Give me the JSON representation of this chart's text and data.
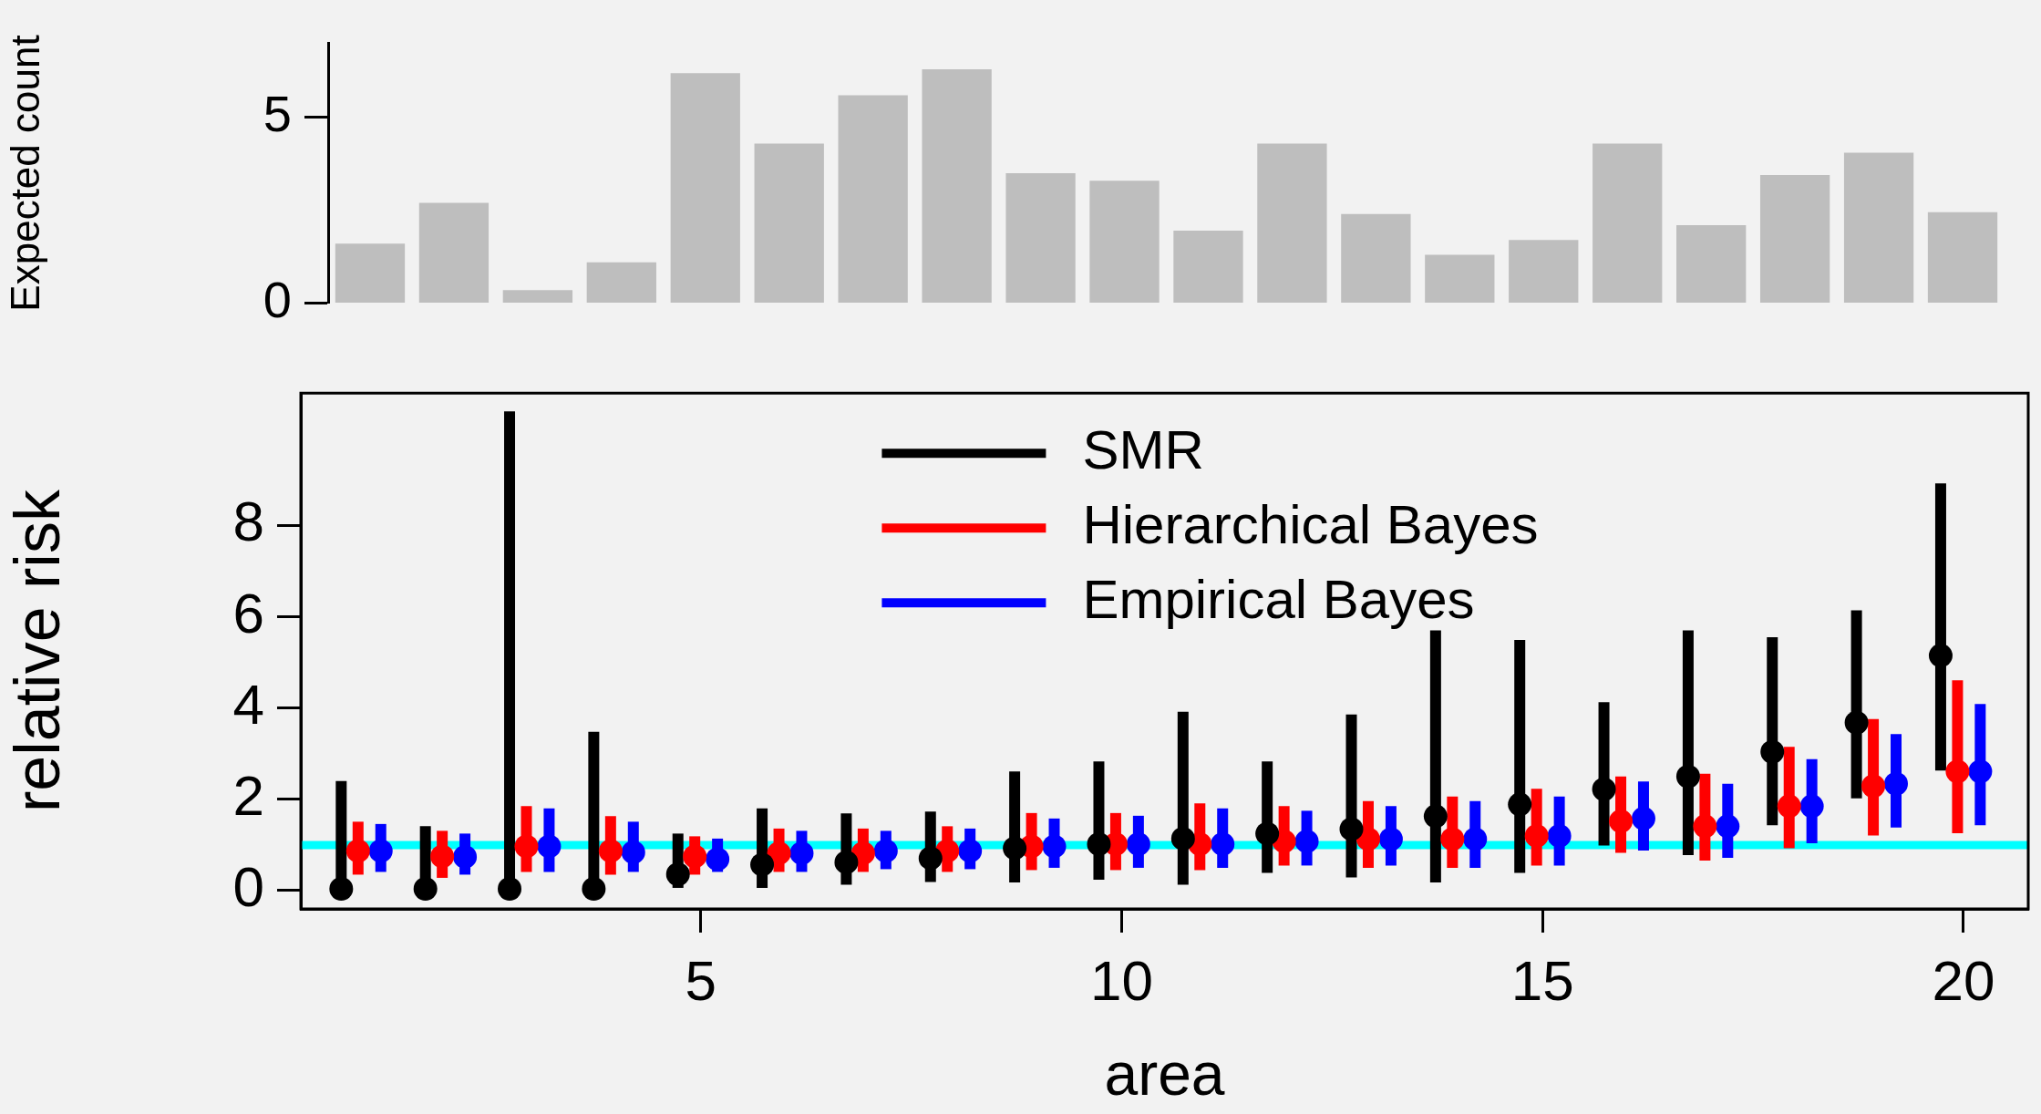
{
  "chart_data": [
    {
      "type": "bar",
      "ylabel": "Expected count",
      "categories": [
        null,
        null,
        null,
        null,
        null,
        null,
        null,
        null,
        null,
        null,
        null,
        null,
        null,
        null,
        null,
        null,
        null,
        null,
        null,
        null
      ],
      "values": [
        1.6,
        2.7,
        0.35,
        1.1,
        6.2,
        4.3,
        5.6,
        6.3,
        3.5,
        3.3,
        1.95,
        4.3,
        2.4,
        1.3,
        1.7,
        4.3,
        2.1,
        3.45,
        4.05,
        2.45
      ],
      "color": "#bebebe",
      "ylim": [
        0,
        7
      ],
      "yticks": [
        0,
        5
      ]
    },
    {
      "type": "scatter",
      "xlabel": "area",
      "ylabel": "relative risk",
      "xlim": [
        0.25,
        20.77
      ],
      "xticks": [
        5,
        10,
        15,
        20
      ],
      "ylim": [
        -0.4,
        10.9
      ],
      "yticks": [
        0,
        2,
        4,
        6,
        8
      ],
      "legend": "top",
      "marker": "circle",
      "ref_lines": [
        {
          "axis": "y",
          "value": 1,
          "color": "#00ffff"
        }
      ],
      "series": [
        {
          "name": "SMR",
          "color": "#000000",
          "x": [
            0.73,
            1.73,
            2.73,
            3.73,
            4.73,
            5.73,
            6.73,
            7.73,
            8.73,
            9.73,
            10.73,
            11.73,
            12.73,
            13.73,
            14.73,
            15.73,
            16.73,
            17.73,
            18.73,
            19.73
          ],
          "values": [
            0.04,
            0.04,
            0.04,
            0.04,
            0.36,
            0.57,
            0.62,
            0.71,
            0.93,
            1.02,
            1.14,
            1.25,
            1.35,
            1.63,
            1.89,
            2.22,
            2.5,
            3.04,
            3.68,
            5.15
          ],
          "errors": [
            [
              0,
              2.4
            ],
            [
              0,
              1.41
            ],
            [
              0,
              10.5
            ],
            [
              0,
              3.48
            ],
            [
              0.06,
              1.25
            ],
            [
              0.06,
              1.8
            ],
            [
              0.13,
              1.69
            ],
            [
              0.19,
              1.73
            ],
            [
              0.18,
              2.61
            ],
            [
              0.24,
              2.83
            ],
            [
              0.13,
              3.92
            ],
            [
              0.39,
              2.83
            ],
            [
              0.29,
              3.86
            ],
            [
              0.18,
              5.7
            ],
            [
              0.39,
              5.49
            ],
            [
              0.99,
              4.13
            ],
            [
              0.78,
              5.7
            ],
            [
              1.43,
              5.55
            ],
            [
              2.02,
              6.14
            ],
            [
              2.63,
              8.92
            ]
          ]
        },
        {
          "name": "Hierarchical Bayes",
          "color": "#ff0000",
          "x": [
            0.93,
            1.93,
            2.93,
            3.93,
            4.93,
            5.93,
            6.93,
            7.93,
            8.93,
            9.93,
            10.93,
            11.93,
            12.93,
            13.93,
            14.93,
            15.93,
            16.93,
            17.93,
            18.93,
            19.93
          ],
          "values": [
            0.87,
            0.75,
            0.97,
            0.87,
            0.75,
            0.82,
            0.82,
            0.87,
            0.97,
            1.02,
            1.02,
            1.08,
            1.13,
            1.13,
            1.2,
            1.52,
            1.41,
            1.85,
            2.29,
            2.61
          ],
          "errors": [
            [
              0.35,
              1.51
            ],
            [
              0.28,
              1.31
            ],
            [
              0.41,
              1.85
            ],
            [
              0.35,
              1.63
            ],
            [
              0.35,
              1.19
            ],
            [
              0.41,
              1.36
            ],
            [
              0.41,
              1.36
            ],
            [
              0.41,
              1.41
            ],
            [
              0.45,
              1.7
            ],
            [
              0.45,
              1.7
            ],
            [
              0.45,
              1.91
            ],
            [
              0.55,
              1.85
            ],
            [
              0.5,
              1.96
            ],
            [
              0.5,
              2.06
            ],
            [
              0.55,
              2.23
            ],
            [
              0.83,
              2.5
            ],
            [
              0.66,
              2.56
            ],
            [
              0.93,
              3.15
            ],
            [
              1.21,
              3.76
            ],
            [
              1.26,
              4.61
            ]
          ]
        },
        {
          "name": "Empirical Bayes",
          "color": "#0000ff",
          "x": [
            1.2,
            2.2,
            3.2,
            4.2,
            5.2,
            6.2,
            7.2,
            8.2,
            9.2,
            10.2,
            11.2,
            12.2,
            13.2,
            14.2,
            15.2,
            16.2,
            17.2,
            18.2,
            19.2,
            20.2
          ],
          "values": [
            0.87,
            0.74,
            0.97,
            0.84,
            0.69,
            0.82,
            0.87,
            0.87,
            0.97,
            1.02,
            1.02,
            1.08,
            1.13,
            1.13,
            1.2,
            1.58,
            1.41,
            1.85,
            2.34,
            2.61
          ],
          "errors": [
            [
              0.41,
              1.46
            ],
            [
              0.35,
              1.25
            ],
            [
              0.41,
              1.8
            ],
            [
              0.41,
              1.51
            ],
            [
              0.41,
              1.14
            ],
            [
              0.41,
              1.31
            ],
            [
              0.47,
              1.31
            ],
            [
              0.47,
              1.36
            ],
            [
              0.5,
              1.58
            ],
            [
              0.5,
              1.64
            ],
            [
              0.5,
              1.8
            ],
            [
              0.55,
              1.75
            ],
            [
              0.55,
              1.85
            ],
            [
              0.5,
              1.96
            ],
            [
              0.55,
              2.06
            ],
            [
              0.88,
              2.39
            ],
            [
              0.72,
              2.34
            ],
            [
              1.04,
              2.88
            ],
            [
              1.38,
              3.43
            ],
            [
              1.43,
              4.09
            ]
          ]
        }
      ]
    }
  ]
}
